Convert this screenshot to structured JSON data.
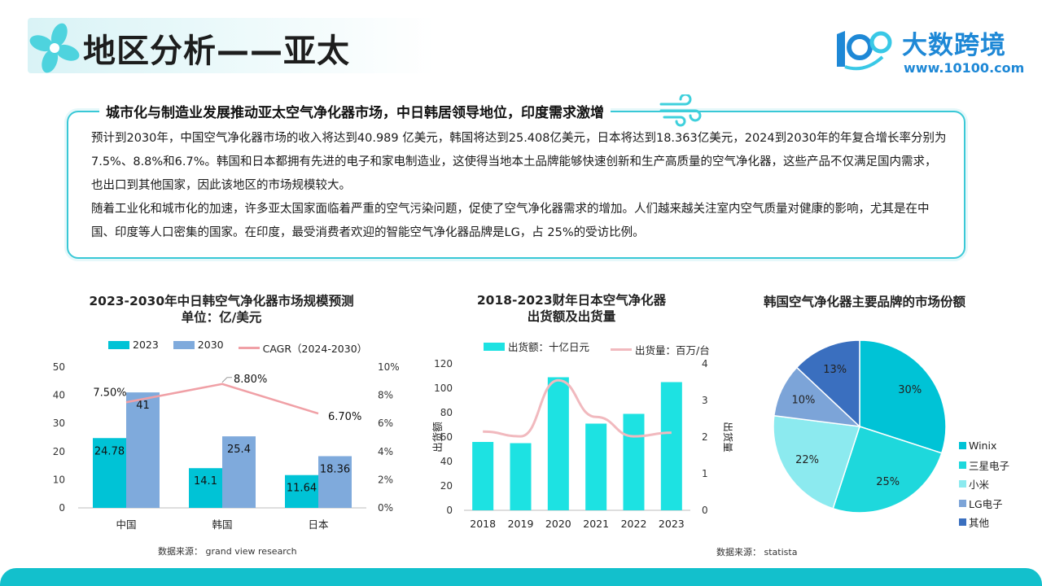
{
  "header": {
    "title": "地区分析——亚太",
    "brand_name": "大数跨境",
    "brand_url": "www.10100.com"
  },
  "summary": {
    "title": "城市化与制造业发展推动亚太空气净化器市场，中日韩居领导地位，印度需求激增",
    "paragraph1": "预计到2030年，中国空气净化器市场的收入将达到40.989 亿美元，韩国将达到25.408亿美元，日本将达到18.363亿美元，2024到2030年的年复合增长率分别为7.5%、8.8%和6.7%。韩国和日本都拥有先进的电子和家电制造业，这使得当地本土品牌能够快速创新和生产高质量的空气净化器，这些产品不仅满足国内需求，也出口到其他国家，因此该地区的市场规模较大。",
    "paragraph2": "随着工业化和城市化的加速，许多亚太国家面临着严重的空气污染问题，促使了空气净化器需求的增加。人们越来越关注室内空气质量对健康的影响，尤其是在中国、印度等人口密集的国家。在印度，最受消费者欢迎的智能空气净化器品牌是LG，占 25%的受访比例。"
  },
  "colors": {
    "accent": "#13c0cc",
    "bar_2023": "#00c3d6",
    "bar_2030": "#7faadc",
    "cagr_line": "#f0a0a6",
    "japan_bar": "#1de2e2",
    "japan_line": "#f1b9be",
    "brand_blue": "#1e88d6"
  },
  "chart_data": [
    {
      "type": "bar",
      "title": "2023-2030年中日韩空气净化器市场规模预测",
      "subtitle": "单位：亿/美元",
      "categories": [
        "中国",
        "韩国",
        "日本"
      ],
      "series": [
        {
          "name": "2023",
          "values": [
            24.78,
            14.1,
            11.64
          ],
          "labels": [
            "24.78",
            "14.1",
            "11.64"
          ]
        },
        {
          "name": "2030",
          "values": [
            41,
            25.4,
            18.36
          ],
          "labels": [
            "41",
            "25.4",
            "18.36"
          ]
        }
      ],
      "line_series": {
        "name": "CAGR（2024-2030）",
        "values": [
          7.5,
          8.8,
          6.7
        ],
        "labels": [
          "7.50%",
          "8.80%",
          "6.70%"
        ],
        "axis": "right"
      },
      "ylim": [
        0,
        50
      ],
      "yticks": [
        "0",
        "10",
        "20",
        "30",
        "40",
        "50"
      ],
      "y2lim": [
        0,
        10
      ],
      "y2ticks": [
        "0%",
        "2%",
        "4%",
        "6%",
        "8%",
        "10%"
      ],
      "legend": "top",
      "source": "数据来源：  grand view research"
    },
    {
      "type": "bar",
      "title": "2018-2023财年日本空气净化器",
      "subtitle": "出货额及出货量",
      "categories": [
        "2018",
        "2019",
        "2020",
        "2021",
        "2022",
        "2023"
      ],
      "series": [
        {
          "name": "出货额：十亿日元",
          "values": [
            56,
            55,
            109,
            71,
            79,
            105
          ]
        }
      ],
      "line_series": {
        "name": "出货量：百万/台",
        "values": [
          2.15,
          2.02,
          3.55,
          2.55,
          2.02,
          2.12
        ],
        "axis": "right"
      },
      "ylabel": "出货额",
      "y2label": "出货量",
      "ylim": [
        0,
        120
      ],
      "yticks": [
        "0",
        "20",
        "40",
        "60",
        "80",
        "100",
        "120"
      ],
      "y2lim": [
        0,
        4
      ],
      "y2ticks": [
        "0",
        "1",
        "2",
        "3",
        "4"
      ],
      "legend": "top"
    },
    {
      "type": "pie",
      "title": "韩国空气净化器主要品牌的市场份额",
      "slices": [
        {
          "name": "Winix",
          "value": 30,
          "label": "30%",
          "color": "#00c3d6"
        },
        {
          "name": "三星电子",
          "value": 25,
          "label": "25%",
          "color": "#1ed8dc"
        },
        {
          "name": "小米",
          "value": 22,
          "label": "22%",
          "color": "#8ceaef"
        },
        {
          "name": "LG电子",
          "value": 10,
          "label": "10%",
          "color": "#7ca4d8"
        },
        {
          "name": "其他",
          "value": 13,
          "label": "13%",
          "color": "#3a6fbf"
        }
      ],
      "legend": "right",
      "source": "数据来源：  statista"
    }
  ]
}
